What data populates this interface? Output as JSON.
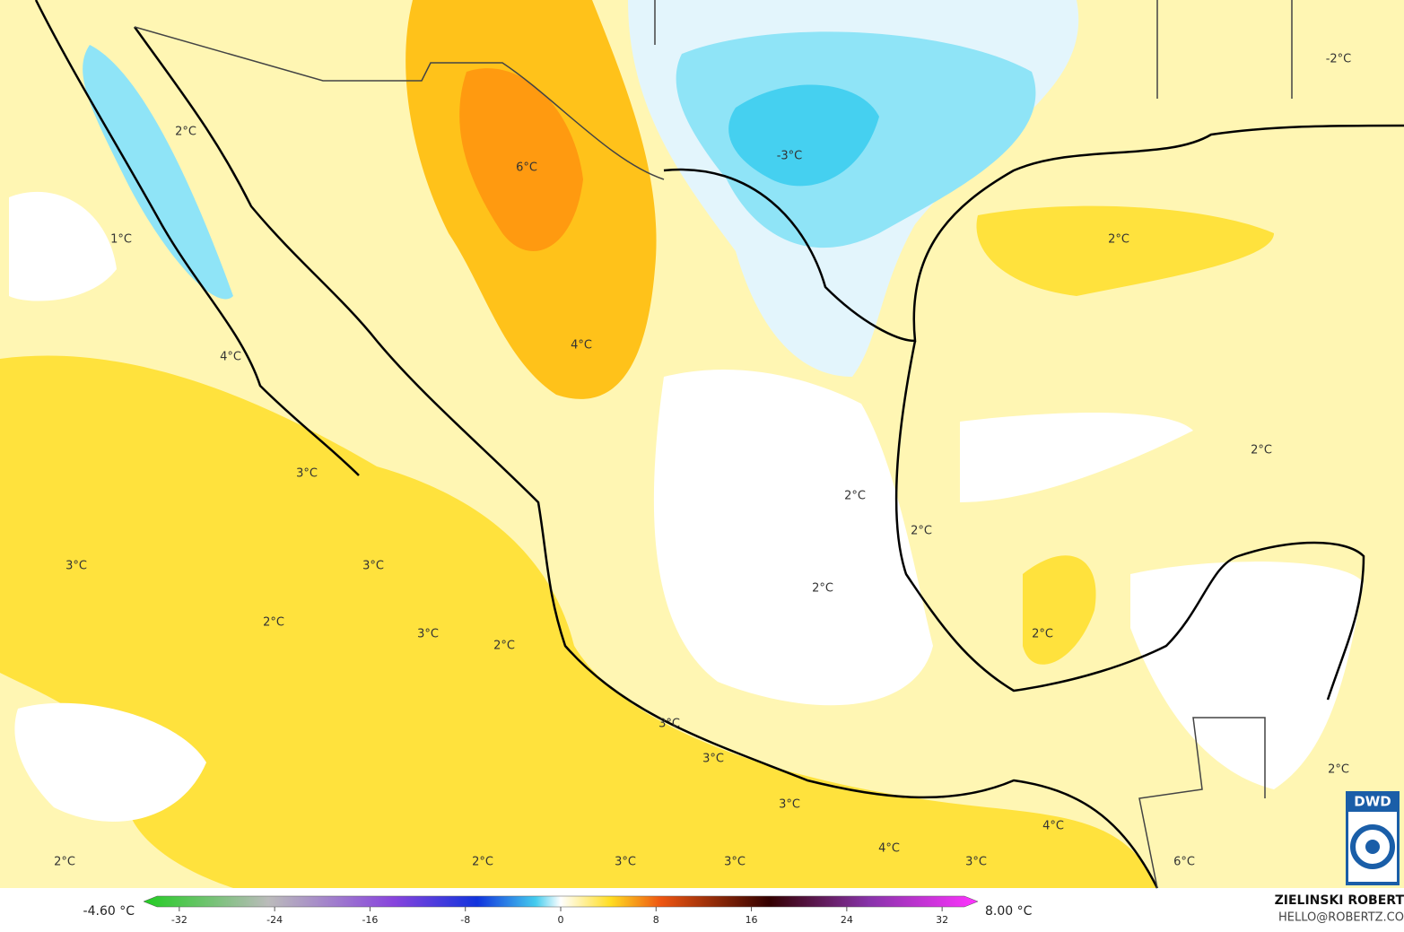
{
  "map": {
    "labels": [
      "2°C",
      "1°C",
      "4°C",
      "3°C",
      "3°C",
      "3°C",
      "2°C",
      "3°C",
      "2°C",
      "6°C",
      "4°C",
      "-3°C",
      "-2°C",
      "2°C",
      "2°C",
      "2°C",
      "2°C",
      "2°C",
      "2°C",
      "3°C",
      "3°C",
      "3°C",
      "4°C",
      "4°C",
      "2°C",
      "2°C",
      "2°C",
      "3°C",
      "3°C",
      "3°C",
      "6°C"
    ]
  },
  "colorbar": {
    "min_label": "-4.60 °C",
    "max_label": "8.00 °C",
    "ticks": [
      -32,
      -24,
      -16,
      -8,
      0,
      8,
      16,
      24,
      32
    ],
    "range": [
      -35,
      35
    ]
  },
  "credit": {
    "author": "ZIELINSKI ROBERT",
    "contact": "HELLO@ROBERTZ.CO",
    "logo": "DWD"
  }
}
